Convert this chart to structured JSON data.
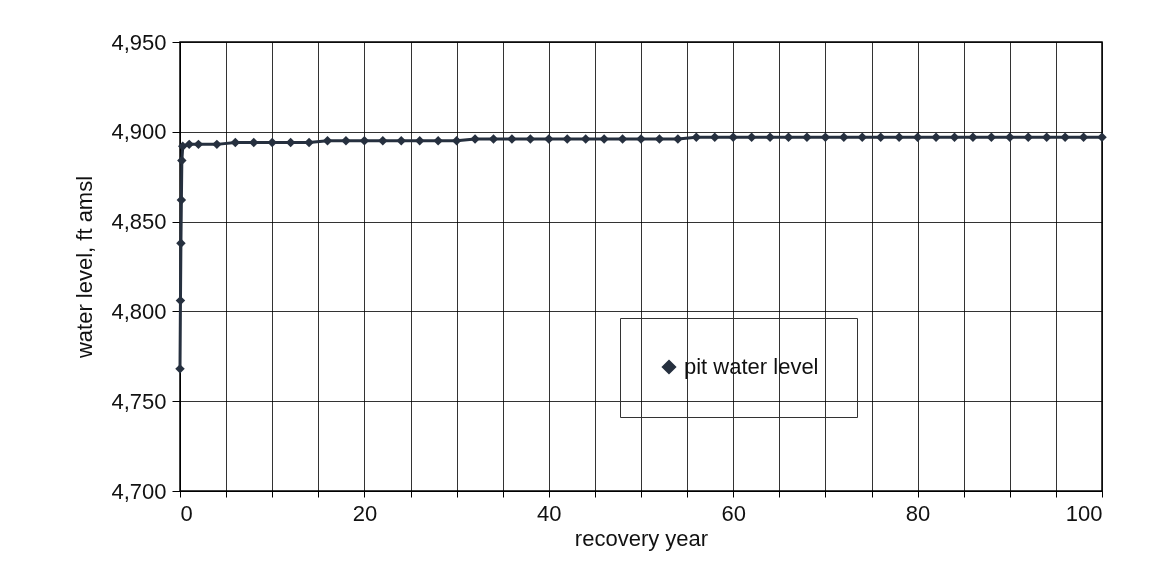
{
  "chart_data": {
    "type": "line",
    "xlabel": "recovery year",
    "ylabel": "water level, ft amsl",
    "x": [
      0,
      0.05,
      0.1,
      0.15,
      0.2,
      0.3,
      1,
      2,
      4,
      6,
      8,
      10,
      12,
      14,
      16,
      18,
      20,
      22,
      24,
      26,
      28,
      30,
      32,
      34,
      36,
      38,
      40,
      42,
      44,
      46,
      48,
      50,
      52,
      54,
      56,
      58,
      60,
      62,
      64,
      66,
      68,
      70,
      72,
      74,
      76,
      78,
      80,
      82,
      84,
      86,
      88,
      90,
      92,
      94,
      96,
      98,
      100
    ],
    "series": [
      {
        "name": "pit water level",
        "color": "#26303f",
        "values": [
          4768,
          4806,
          4838,
          4862,
          4884,
          4892,
          4893,
          4893,
          4893,
          4894,
          4894,
          4894,
          4894,
          4894,
          4895,
          4895,
          4895,
          4895,
          4895,
          4895,
          4895,
          4895,
          4896,
          4896,
          4896,
          4896,
          4896,
          4896,
          4896,
          4896,
          4896,
          4896,
          4896,
          4896,
          4897,
          4897,
          4897,
          4897,
          4897,
          4897,
          4897,
          4897,
          4897,
          4897,
          4897,
          4897,
          4897,
          4897,
          4897,
          4897,
          4897,
          4897,
          4897,
          4897,
          4897,
          4897,
          4897
        ]
      }
    ],
    "xlim": [
      0,
      100
    ],
    "xticks": [
      0,
      {
        "value": 5,
        "label": null
      },
      {
        "value": 10,
        "label": null
      },
      {
        "value": 15,
        "label": null
      },
      20,
      {
        "value": 25,
        "label": null
      },
      {
        "value": 30,
        "label": null
      },
      {
        "value": 35,
        "label": null
      },
      40,
      {
        "value": 45,
        "label": null
      },
      {
        "value": 50,
        "label": null
      },
      {
        "value": 55,
        "label": null
      },
      60,
      {
        "value": 65,
        "label": null
      },
      {
        "value": 70,
        "label": null
      },
      {
        "value": 75,
        "label": null
      },
      80,
      {
        "value": 85,
        "label": null
      },
      {
        "value": 90,
        "label": null
      },
      {
        "value": 95,
        "label": null
      },
      100
    ],
    "ylim": [
      4700,
      4950
    ],
    "yticks": [
      {
        "value": 4700,
        "label": "4,700"
      },
      {
        "value": 4750,
        "label": "4,750"
      },
      {
        "value": 4800,
        "label": "4,800"
      },
      {
        "value": 4850,
        "label": "4,850"
      },
      {
        "value": 4900,
        "label": "4,900"
      },
      {
        "value": 4950,
        "label": "4,950"
      }
    ],
    "grid": true,
    "legend": "bottom right",
    "marker": "diamond",
    "line_style": "solid"
  }
}
